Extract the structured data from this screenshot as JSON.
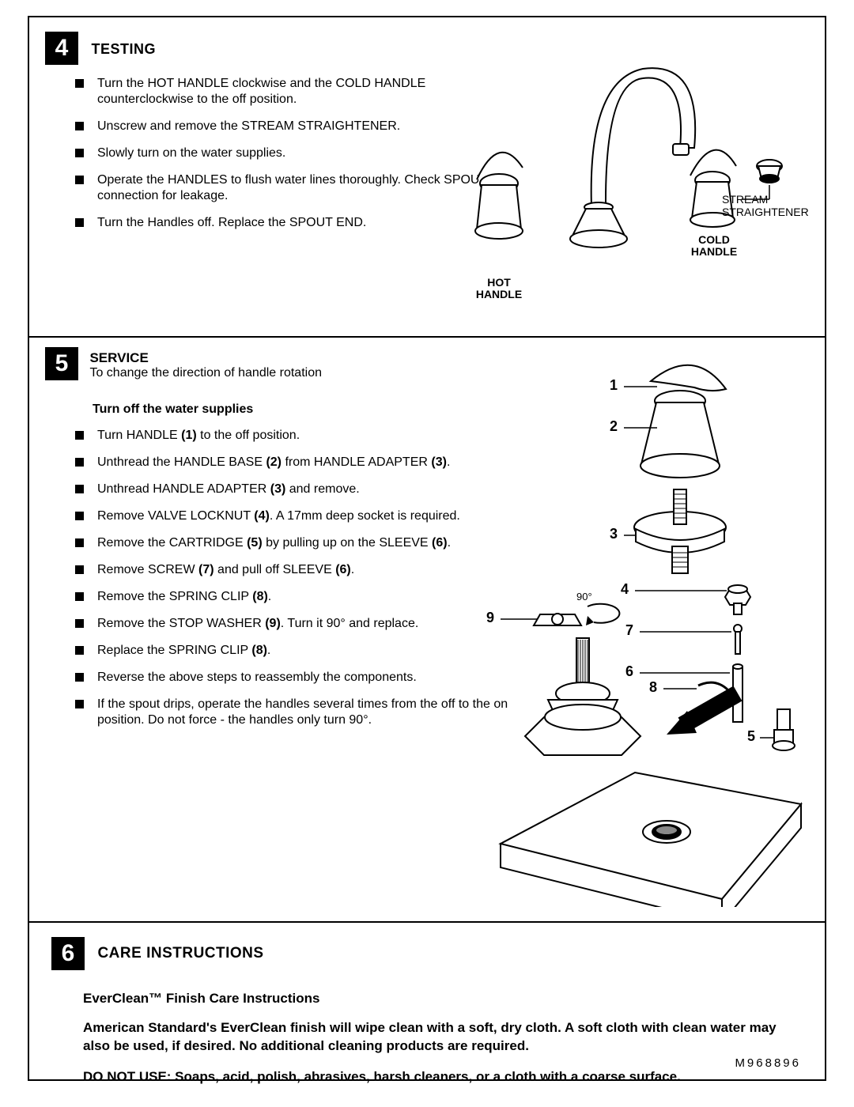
{
  "doc_number": "M968896",
  "section4": {
    "num": "4",
    "title": "TESTING",
    "bullets": [
      "Turn the HOT HANDLE clockwise and the COLD HANDLE counterclockwise to the off position.",
      "Unscrew and remove the STREAM STRAIGHTENER.",
      "Slowly turn on the water supplies.",
      "Operate the HANDLES to flush water lines thoroughly. Check SPOUT connection for leakage.",
      "Turn the Handles off.  Replace the SPOUT END."
    ],
    "labels": {
      "hot": "HOT HANDLE",
      "cold": "COLD HANDLE",
      "stream": "STREAM STRAIGHTENER"
    }
  },
  "section5": {
    "num": "5",
    "title": "SERVICE",
    "subtitle": "To change the direction of handle rotation",
    "sub_bold": "Turn off the water supplies",
    "bullets_html": [
      "Turn HANDLE <b>(1)</b> to the off position.",
      "Unthread the HANDLE BASE <b>(2)</b> from HANDLE ADAPTER <b>(3)</b>.",
      "Unthread HANDLE ADAPTER <b>(3)</b> and remove.",
      "Remove VALVE LOCKNUT <b>(4)</b>. A 17mm deep socket is required.",
      "Remove the CARTRIDGE <b>(5)</b> by pulling up on the SLEEVE <b>(6)</b>.",
      "Remove SCREW <b>(7)</b> and pull off SLEEVE <b>(6)</b>.",
      "Remove the SPRING CLIP <b>(8)</b>.",
      "Remove the STOP WASHER <b>(9)</b>. Turn it 90° and replace.",
      "Replace the SPRING CLIP <b>(8)</b>.",
      "Reverse the above steps to reassembly the components.",
      "If the spout drips, operate the handles several times from the off to the on position. Do not force - the handles only turn 90°."
    ],
    "part_labels": [
      "1",
      "2",
      "3",
      "4",
      "5",
      "6",
      "7",
      "8",
      "9"
    ],
    "angle": "90°"
  },
  "section6": {
    "num": "6",
    "title": "CARE INSTRUCTIONS",
    "sub": "EverClean™ Finish Care Instructions",
    "body1": "American Standard's EverClean finish will wipe clean with a soft, dry cloth. A soft cloth with clean water may also be used, if desired. No additional cleaning products are required.",
    "body2": "DO NOT USE: Soaps, acid, polish, abrasives, harsh cleaners, or a cloth with a coarse surface."
  }
}
